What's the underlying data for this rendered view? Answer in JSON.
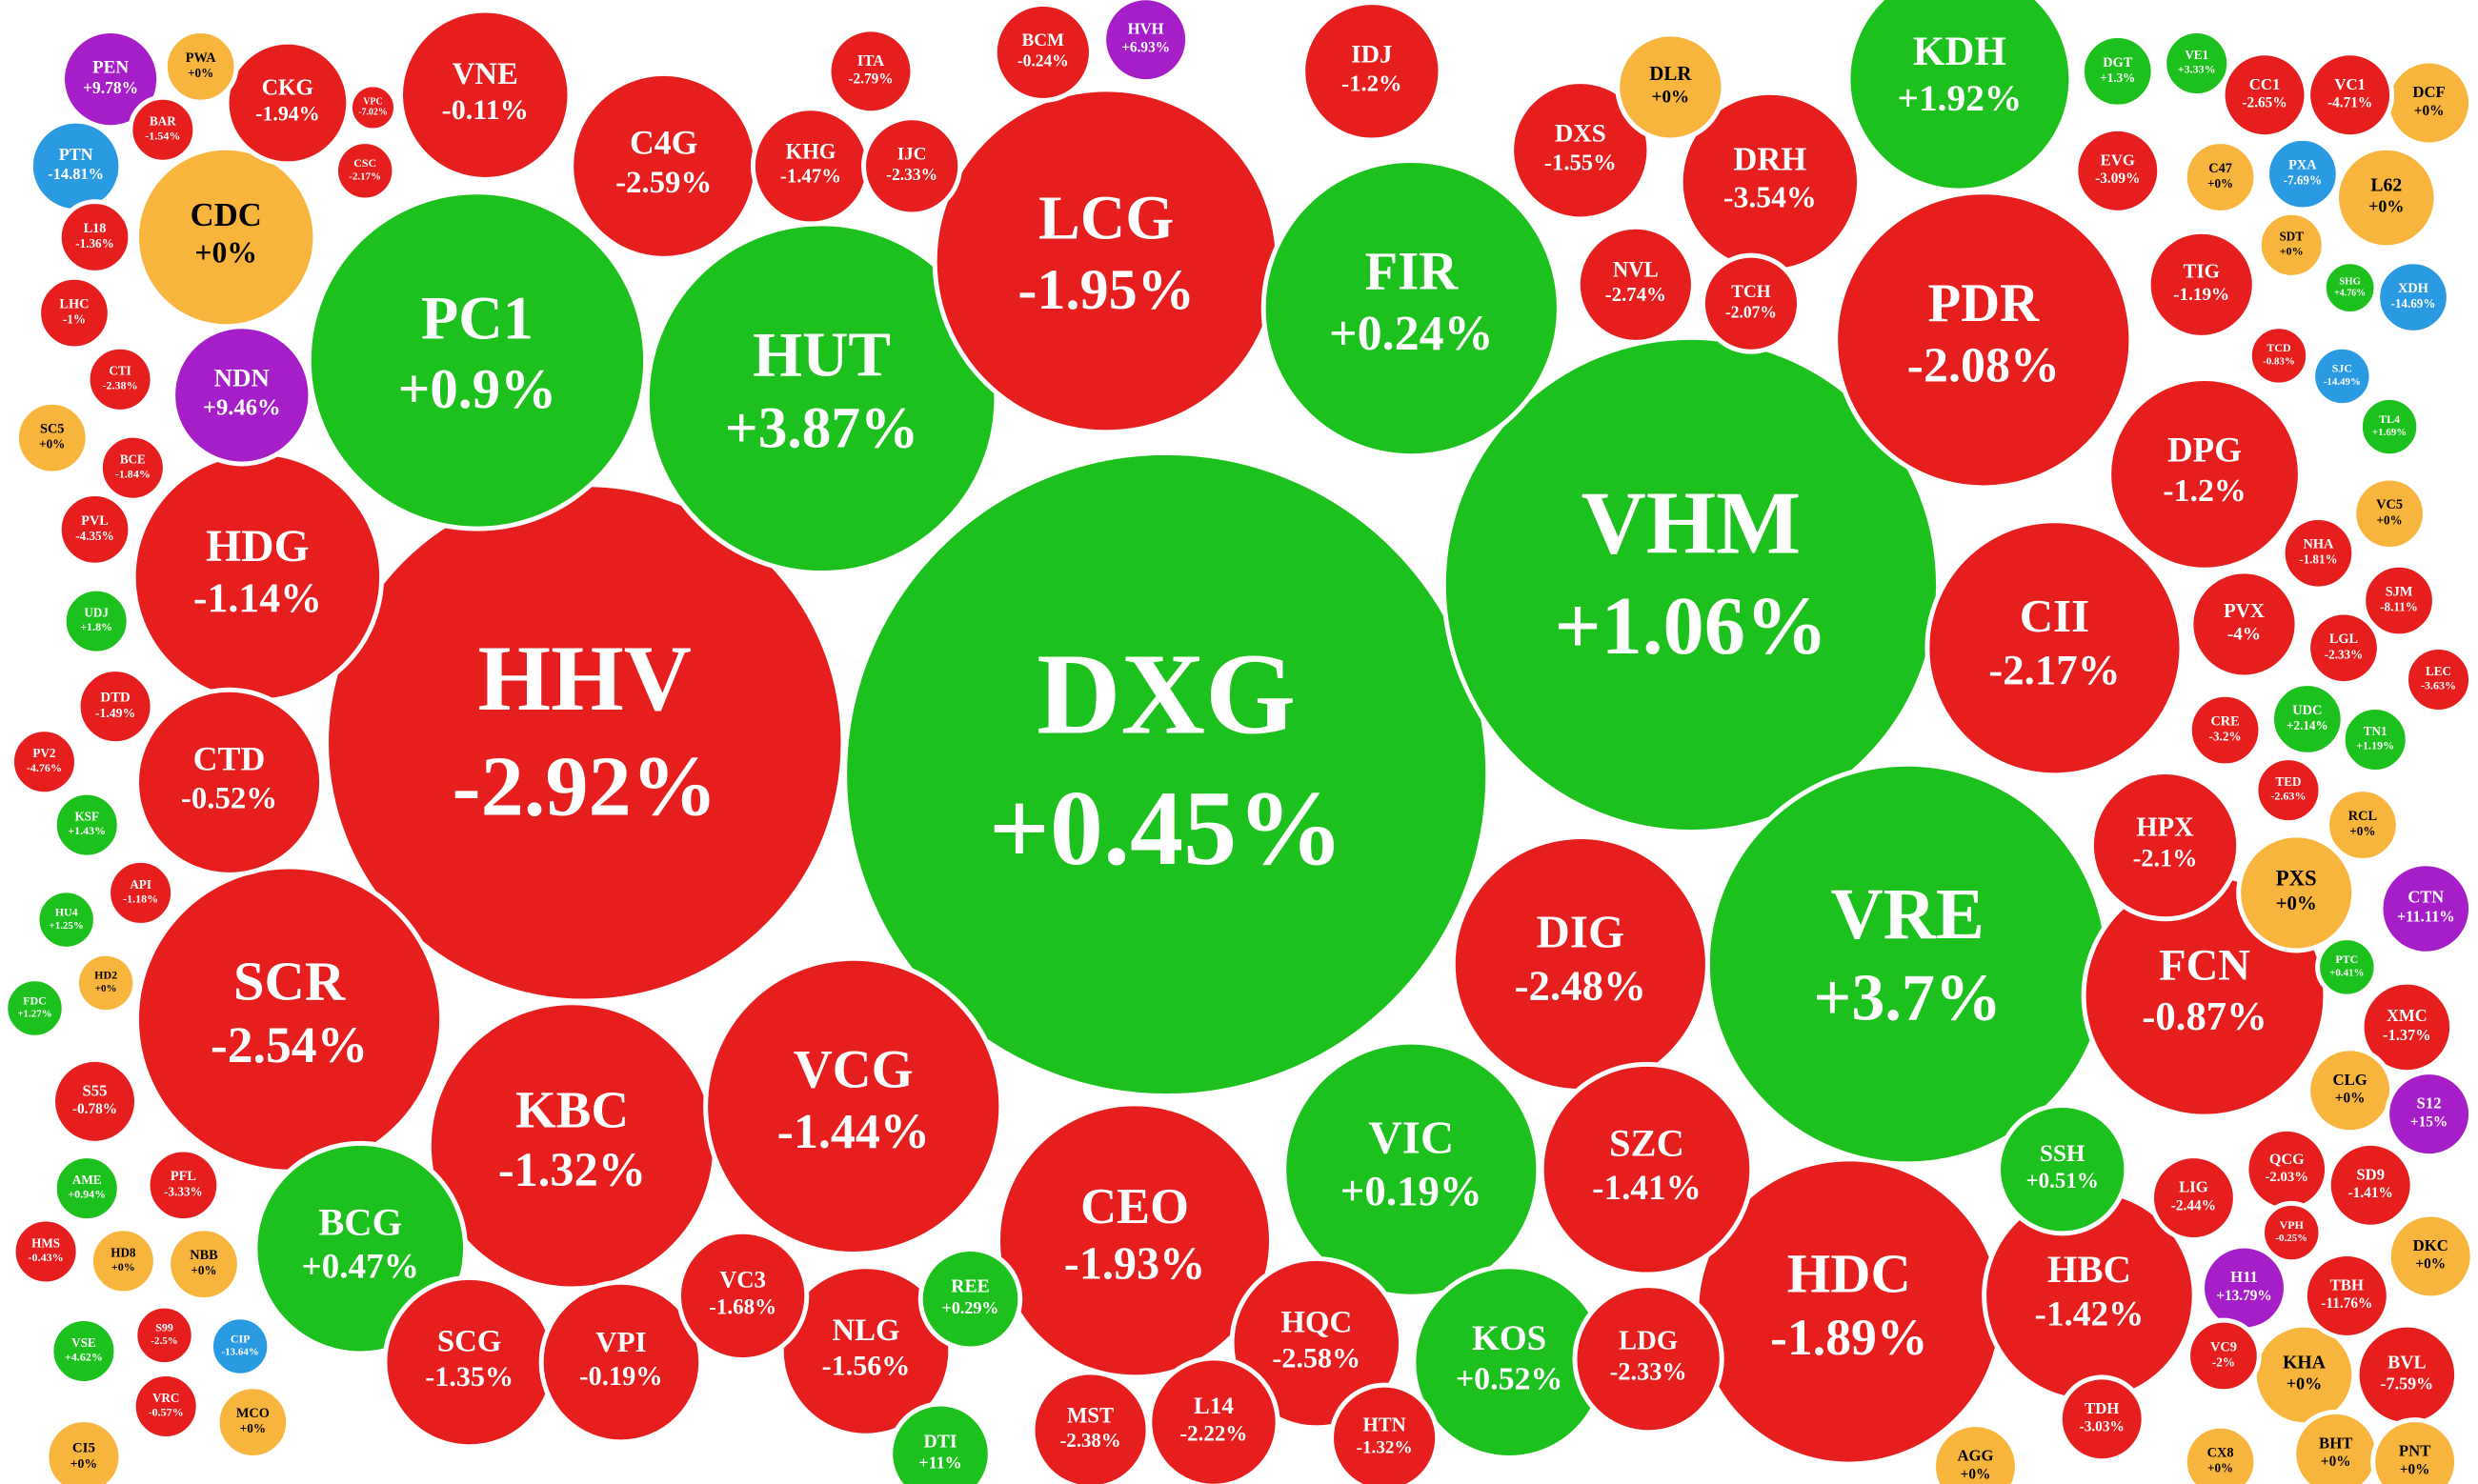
{
  "chart_data": {
    "type": "voronoi-treemap",
    "categories": [
      "DXG",
      "HHV",
      "VHM",
      "VRE",
      "HUT",
      "PC1",
      "LCG",
      "FIR",
      "PDR",
      "HDC",
      "SCR",
      "KBC",
      "VCG",
      "CEO",
      "VIC",
      "DIG",
      "CII",
      "HDG",
      "KDH",
      "FCN",
      "HBC",
      "SZC",
      "C4G",
      "VNE",
      "CDC",
      "DRH",
      "DPG",
      "KOS",
      "BCG",
      "CTD",
      "SCG",
      "VPI",
      "NLG",
      "HQC",
      "VC3",
      "LDG",
      "DXS",
      "IDJ",
      "HPX",
      "PVX",
      "SSH",
      "NDN",
      "PEN",
      "HVH",
      "TIG",
      "NVL",
      "TCH",
      "KHG",
      "IJC",
      "ITA",
      "CKG",
      "BCM",
      "L14",
      "HTN",
      "MST",
      "DTI",
      "REE",
      "DLR",
      "PXS",
      "CTN",
      "XMC",
      "CLG",
      "S12",
      "KHA",
      "BVL",
      "TBH",
      "H11",
      "DKC",
      "SD9",
      "QCG",
      "LIG",
      "VPH",
      "VC9",
      "CX8",
      "BHT",
      "PNT",
      "AGG",
      "TDH",
      "L62",
      "DCF",
      "VC1",
      "CC1",
      "VE1",
      "DGT",
      "EVG",
      "C47",
      "PXA",
      "SDT",
      "XDH",
      "SJC",
      "TL4",
      "VC5",
      "NHA",
      "SJM",
      "LGL",
      "LEC",
      "UDC",
      "TN1",
      "CRE",
      "TED",
      "RCL",
      "PTC",
      "TCD",
      "SHG",
      "PTN",
      "BAR",
      "PWA",
      "L18",
      "LHC",
      "CTI",
      "SC5",
      "BCE",
      "PVL",
      "UDJ",
      "DTD",
      "PV2",
      "KSF",
      "API",
      "HU4",
      "HD2",
      "FDC",
      "S55",
      "AME",
      "PFL",
      "HMS",
      "HD8",
      "NBB",
      "S99",
      "VSE",
      "CIP",
      "VRC",
      "MCO",
      "CI5",
      "CSC",
      "VPC"
    ],
    "values": [
      0.45,
      -2.92,
      1.06,
      3.7,
      3.87,
      0.9,
      -1.95,
      0.24,
      -2.08,
      -1.89,
      -2.54,
      -1.32,
      -1.44,
      -1.93,
      0.19,
      -2.48,
      -2.17,
      -1.14,
      1.92,
      -0.87,
      -1.42,
      -1.41,
      -2.59,
      -0.11,
      0,
      -3.54,
      -1.2,
      0.52,
      0.47,
      -0.52,
      -1.35,
      -0.19,
      -1.56,
      -2.58,
      -1.68,
      -2.33,
      -1.55,
      -1.2,
      -2.1,
      -4,
      0.51,
      9.46,
      9.78,
      6.93,
      -1.19,
      -2.74,
      -2.07,
      -1.47,
      -2.33,
      -2.79,
      -1.94,
      -0.24,
      -2.22,
      -1.32,
      -2.38,
      11,
      0.29,
      0,
      0,
      11.11,
      -1.37,
      0,
      15,
      0,
      -7.59,
      -11.76,
      13.79,
      0,
      -1.41,
      -2.03,
      -2.44,
      -0.25,
      -2,
      0,
      0,
      0,
      0,
      -3.03,
      0,
      0,
      -4.71,
      -2.65,
      3.33,
      1.3,
      -3.09,
      0,
      -7.69,
      0,
      -14.69,
      -14.49,
      1.69,
      0,
      -1.81,
      -8.11,
      -2.33,
      -3.63,
      2.14,
      1.19,
      -3.2,
      -2.63,
      0,
      0.41,
      -0.83,
      4.76,
      -14.81,
      -1.54,
      0,
      -1.36,
      -1,
      -2.38,
      0,
      -1.84,
      -4.35,
      1.8,
      -1.49,
      -4.76,
      1.43,
      -1.18,
      1.25,
      0,
      1.27,
      -0.78,
      0.94,
      -3.33,
      -0.43,
      0,
      0,
      -2.5,
      4.62,
      -13.64,
      -0.57,
      0,
      0,
      -2.17,
      -7.02
    ],
    "value_labels": [
      "+0.45%",
      "-2.92%",
      "+1.06%",
      "+3.7%",
      "+3.87%",
      "+0.9%",
      "-1.95%",
      "+0.24%",
      "-2.08%",
      "-1.89%",
      "-2.54%",
      "-1.32%",
      "-1.44%",
      "-1.93%",
      "+0.19%",
      "-2.48%",
      "-2.17%",
      "-1.14%",
      "+1.92%",
      "-0.87%",
      "-1.42%",
      "-1.41%",
      "-2.59%",
      "-0.11%",
      "+0%",
      "-3.54%",
      "-1.2%",
      "+0.52%",
      "+0.47%",
      "-0.52%",
      "-1.35%",
      "-0.19%",
      "-1.56%",
      "-2.58%",
      "-1.68%",
      "-2.33%",
      "-1.55%",
      "-1.2%",
      "-2.1%",
      "-4%",
      "+0.51%",
      "+9.46%",
      "+9.78%",
      "+6.93%",
      "-1.19%",
      "-2.74%",
      "-2.07%",
      "-1.47%",
      "-2.33%",
      "-2.79%",
      "-1.94%",
      "-0.24%",
      "-2.22%",
      "-1.32%",
      "-2.38%",
      "+11%",
      "+0.29%",
      "+0%",
      "+0%",
      "+11.11%",
      "-1.37%",
      "+0%",
      "+15%",
      "+0%",
      "-7.59%",
      "-11.76%",
      "+13.79%",
      "+0%",
      "-1.41%",
      "-2.03%",
      "-2.44%",
      "-0.25%",
      "-2%",
      "+0%",
      "+0%",
      "+0%",
      "+0%",
      "-3.03%",
      "+0%",
      "+0%",
      "-4.71%",
      "-2.65%",
      "+3.33%",
      "+1.3%",
      "-3.09%",
      "+0%",
      "-7.69%",
      "+0%",
      "-14.69%",
      "-14.49%",
      "+1.69%",
      "+0%",
      "-1.81%",
      "-8.11%",
      "-2.33%",
      "-3.63%",
      "+2.14%",
      "+1.19%",
      "-3.2%",
      "-2.63%",
      "+0%",
      "+0.41%",
      "-0.83%",
      "+4.76%",
      "-14.81%",
      "-1.54%",
      "+0%",
      "-1.36%",
      "-1%",
      "-2.38%",
      "+0%",
      "-1.84%",
      "-4.35%",
      "+1.8%",
      "-1.49%",
      "-4.76%",
      "+1.43%",
      "-1.18%",
      "+1.25%",
      "+0%",
      "+1.27%",
      "-0.78%",
      "+0.94%",
      "-3.33%",
      "-0.43%",
      "+0%",
      "+0%",
      "-2.5%",
      "+4.62%",
      "-13.64%",
      "-0.57%",
      "+0%",
      "+0%",
      "-2.17%",
      "-7.02%"
    ],
    "colors": [
      "#1dc11d",
      "#e61e1e",
      "#1dc11d",
      "#1dc11d",
      "#1dc11d",
      "#1dc11d",
      "#e61e1e",
      "#1dc11d",
      "#e61e1e",
      "#e61e1e",
      "#e61e1e",
      "#e61e1e",
      "#e61e1e",
      "#e61e1e",
      "#1dc11d",
      "#e61e1e",
      "#e61e1e",
      "#e61e1e",
      "#1dc11d",
      "#e61e1e",
      "#e61e1e",
      "#e61e1e",
      "#e61e1e",
      "#e61e1e",
      "#f8b53e",
      "#e61e1e",
      "#e61e1e",
      "#1dc11d",
      "#1dc11d",
      "#e61e1e",
      "#e61e1e",
      "#e61e1e",
      "#e61e1e",
      "#e61e1e",
      "#e61e1e",
      "#e61e1e",
      "#e61e1e",
      "#e61e1e",
      "#e61e1e",
      "#e61e1e",
      "#1dc11d",
      "#a51ec8",
      "#a51ec8",
      "#a51ec8",
      "#e61e1e",
      "#e61e1e",
      "#e61e1e",
      "#e61e1e",
      "#e61e1e",
      "#e61e1e",
      "#e61e1e",
      "#e61e1e",
      "#e61e1e",
      "#e61e1e",
      "#e61e1e",
      "#1dc11d",
      "#1dc11d",
      "#f8b53e",
      "#f8b53e",
      "#a51ec8",
      "#e61e1e",
      "#f8b53e",
      "#a51ec8",
      "#f8b53e",
      "#e61e1e",
      "#e61e1e",
      "#a51ec8",
      "#f8b53e",
      "#e61e1e",
      "#e61e1e",
      "#e61e1e",
      "#e61e1e",
      "#e61e1e",
      "#f8b53e",
      "#f8b53e",
      "#f8b53e",
      "#f8b53e",
      "#e61e1e",
      "#f8b53e",
      "#f8b53e",
      "#e61e1e",
      "#e61e1e",
      "#1dc11d",
      "#1dc11d",
      "#e61e1e",
      "#f8b53e",
      "#2a9ae2",
      "#f8b53e",
      "#2a9ae2",
      "#2a9ae2",
      "#1dc11d",
      "#f8b53e",
      "#e61e1e",
      "#e61e1e",
      "#e61e1e",
      "#e61e1e",
      "#1dc11d",
      "#1dc11d",
      "#e61e1e",
      "#e61e1e",
      "#f8b53e",
      "#1dc11d",
      "#e61e1e",
      "#1dc11d",
      "#2a9ae2",
      "#e61e1e",
      "#f8b53e",
      "#e61e1e",
      "#e61e1e",
      "#e61e1e",
      "#f8b53e",
      "#e61e1e",
      "#e61e1e",
      "#1dc11d",
      "#e61e1e",
      "#e61e1e",
      "#1dc11d",
      "#e61e1e",
      "#1dc11d",
      "#f8b53e",
      "#1dc11d",
      "#e61e1e",
      "#1dc11d",
      "#e61e1e",
      "#e61e1e",
      "#f8b53e",
      "#f8b53e",
      "#e61e1e",
      "#1dc11d",
      "#2a9ae2",
      "#e61e1e",
      "#f8b53e",
      "#f8b53e",
      "#e61e1e",
      "#e61e1e"
    ]
  }
}
